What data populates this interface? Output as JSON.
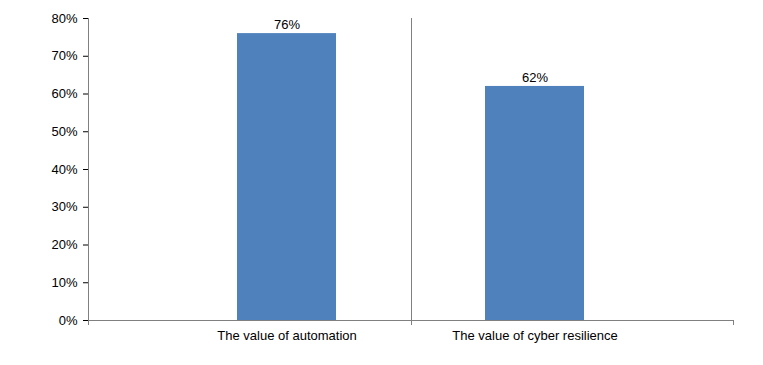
{
  "chart_data": {
    "type": "bar",
    "categories": [
      "The value of automation",
      "The value of cyber resilience"
    ],
    "values": [
      76,
      62
    ],
    "value_labels": [
      "76%",
      "62%"
    ],
    "color": "#4f81bd",
    "ylim": [
      0,
      80
    ],
    "yticks": [
      {
        "value": 0,
        "label": "0%"
      },
      {
        "value": 10,
        "label": "10%"
      },
      {
        "value": 20,
        "label": "20%"
      },
      {
        "value": 30,
        "label": "30%"
      },
      {
        "value": 40,
        "label": "40%"
      },
      {
        "value": 50,
        "label": "50%"
      },
      {
        "value": 60,
        "label": "60%"
      },
      {
        "value": 70,
        "label": "70%"
      },
      {
        "value": 80,
        "label": "80%"
      }
    ],
    "grid": false,
    "data_labels": true
  }
}
